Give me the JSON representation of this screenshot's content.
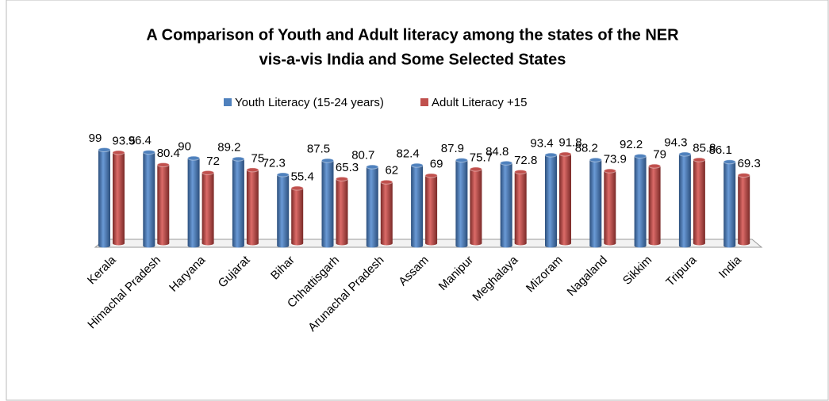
{
  "chart_data": {
    "type": "bar3d",
    "title": [
      "A Comparison of Youth and Adult literacy among the states of the NER",
      "vis-a-vis India and Some Selected States"
    ],
    "categories": [
      "Kerala",
      "Himachal Pradesh",
      "Haryana",
      "Gujarat",
      "Bihar",
      "Chhattisgarh",
      "Arunachal Pradesh",
      "Assam",
      "Manipur",
      "Meghalaya",
      "Mizoram",
      "Nagaland",
      "Sikkim",
      "Tripura",
      "India"
    ],
    "series": [
      {
        "name": "Youth Literacy (15-24 years)",
        "color": "#4f81bd",
        "values": [
          99,
          96.4,
          90,
          89.2,
          72.3,
          87.5,
          80.7,
          82.4,
          87.9,
          84.8,
          93.4,
          88.2,
          92.2,
          94.3,
          86.1
        ]
      },
      {
        "name": "Adult Literacy +15",
        "color": "#c0504d",
        "values": [
          93.5,
          80.4,
          72,
          75,
          55.4,
          65.3,
          62,
          69,
          75.7,
          72.8,
          91.8,
          73.9,
          79,
          85.8,
          69.3
        ]
      }
    ],
    "legend": "top"
  }
}
